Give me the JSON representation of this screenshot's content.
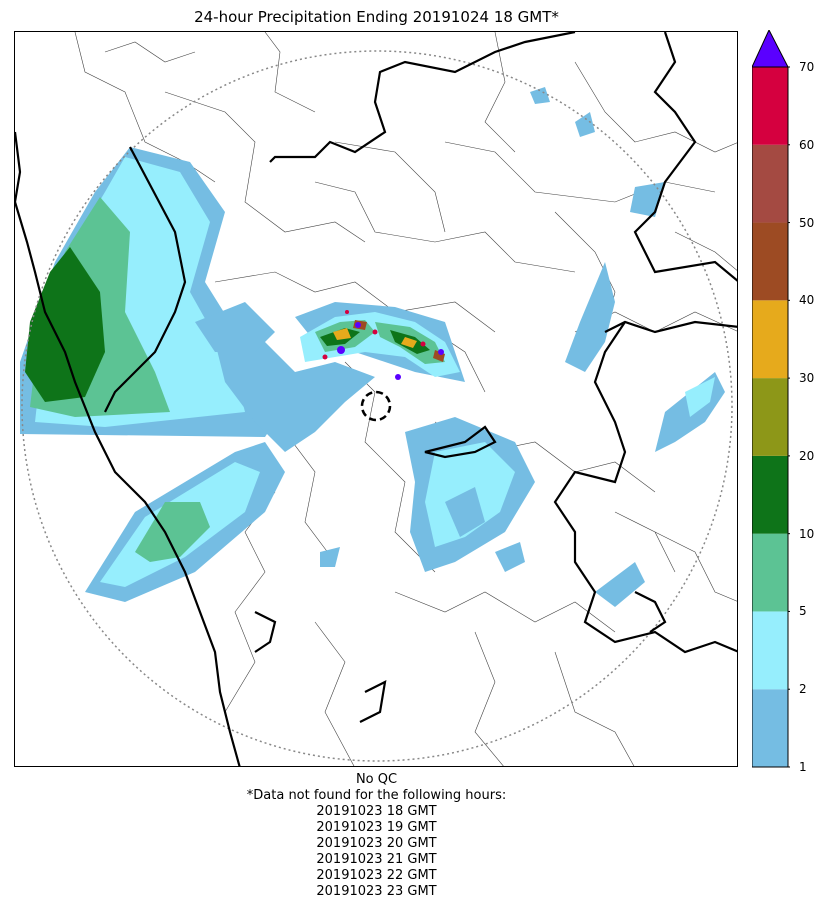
{
  "title": "24-hour Precipitation Ending 20191024 18 GMT*",
  "colorbar": {
    "ticks": [
      "1",
      "2",
      "5",
      "10",
      "20",
      "30",
      "40",
      "50",
      "60",
      "70"
    ],
    "colors": [
      "#75bde3",
      "#96eefd",
      "#5cc394",
      "#0e7419",
      "#8d9718",
      "#e6aa1c",
      "#9d4b23",
      "#a44a42",
      "#d5003f"
    ],
    "extend_color": "#5a00ff"
  },
  "footer": {
    "qc": "No QC",
    "missing_header": "*Data not found for the following hours:",
    "missing_hours": [
      "20191023 18 GMT",
      "20191023 19 GMT",
      "20191023 20 GMT",
      "20191023 21 GMT",
      "20191023 22 GMT",
      "20191023 23 GMT"
    ]
  }
}
